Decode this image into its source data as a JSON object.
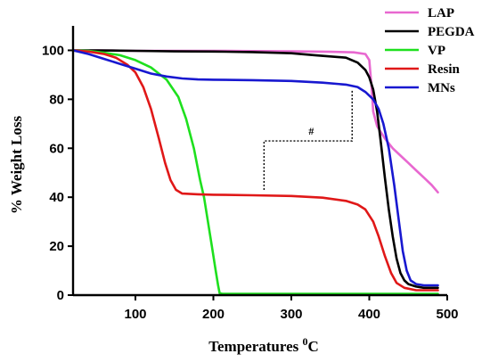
{
  "chart_data": {
    "type": "line",
    "title": "",
    "xlabel": "Temperatures ",
    "xlabel_sup": "0",
    "xlabel_unit": "C",
    "ylabel": "% Weight Loss",
    "xlim": [
      20,
      500
    ],
    "ylim": [
      0,
      110
    ],
    "xticks": [
      100,
      200,
      300,
      400,
      500
    ],
    "yticks": [
      0,
      20,
      40,
      60,
      80,
      100
    ],
    "grid": false,
    "legend_position": "top-right",
    "annotation": {
      "text": "#",
      "between": [
        "Resin",
        "MNs"
      ],
      "x_range": [
        265,
        378
      ]
    },
    "series": [
      {
        "name": "LAP",
        "color": "#e868d0",
        "points": [
          [
            20,
            100
          ],
          [
            50,
            100
          ],
          [
            100,
            99.8
          ],
          [
            150,
            99.8
          ],
          [
            200,
            99.8
          ],
          [
            250,
            99.7
          ],
          [
            300,
            99.6
          ],
          [
            350,
            99.4
          ],
          [
            380,
            99.2
          ],
          [
            395,
            98.5
          ],
          [
            400,
            96
          ],
          [
            403,
            85
          ],
          [
            405,
            75
          ],
          [
            410,
            69
          ],
          [
            420,
            64
          ],
          [
            430,
            60
          ],
          [
            440,
            57
          ],
          [
            450,
            54
          ],
          [
            460,
            51
          ],
          [
            470,
            48
          ],
          [
            480,
            45
          ],
          [
            488,
            42
          ]
        ]
      },
      {
        "name": "PEGDA",
        "color": "#000000",
        "points": [
          [
            20,
            100
          ],
          [
            50,
            100
          ],
          [
            100,
            99.8
          ],
          [
            150,
            99.6
          ],
          [
            200,
            99.5
          ],
          [
            250,
            99.3
          ],
          [
            300,
            98.8
          ],
          [
            330,
            98
          ],
          [
            350,
            97.5
          ],
          [
            370,
            97
          ],
          [
            385,
            95
          ],
          [
            395,
            92
          ],
          [
            400,
            89
          ],
          [
            405,
            84
          ],
          [
            410,
            75
          ],
          [
            415,
            62
          ],
          [
            420,
            48
          ],
          [
            425,
            35
          ],
          [
            430,
            24
          ],
          [
            435,
            15
          ],
          [
            440,
            9
          ],
          [
            445,
            6
          ],
          [
            450,
            4.5
          ],
          [
            460,
            3.5
          ],
          [
            470,
            3
          ],
          [
            480,
            3
          ],
          [
            488,
            3
          ]
        ]
      },
      {
        "name": "VP",
        "color": "#1ee01e",
        "points": [
          [
            20,
            100
          ],
          [
            40,
            99.8
          ],
          [
            60,
            99
          ],
          [
            80,
            98
          ],
          [
            100,
            96
          ],
          [
            120,
            93
          ],
          [
            140,
            88
          ],
          [
            155,
            81
          ],
          [
            165,
            72
          ],
          [
            175,
            60
          ],
          [
            183,
            47
          ],
          [
            188,
            40
          ],
          [
            193,
            30
          ],
          [
            198,
            20
          ],
          [
            203,
            10
          ],
          [
            206,
            4
          ],
          [
            208,
            0.8
          ],
          [
            212,
            0.5
          ],
          [
            250,
            0.5
          ],
          [
            300,
            0.5
          ],
          [
            350,
            0.5
          ],
          [
            400,
            0.5
          ],
          [
            450,
            0.5
          ],
          [
            488,
            0.5
          ]
        ]
      },
      {
        "name": "Resin",
        "color": "#e01818",
        "points": [
          [
            20,
            100
          ],
          [
            40,
            99.5
          ],
          [
            60,
            98.5
          ],
          [
            75,
            97
          ],
          [
            90,
            94
          ],
          [
            100,
            91
          ],
          [
            110,
            85
          ],
          [
            120,
            76
          ],
          [
            130,
            64
          ],
          [
            138,
            54
          ],
          [
            145,
            47
          ],
          [
            152,
            43
          ],
          [
            160,
            41.5
          ],
          [
            180,
            41.2
          ],
          [
            200,
            41
          ],
          [
            250,
            40.8
          ],
          [
            300,
            40.5
          ],
          [
            340,
            39.8
          ],
          [
            370,
            38.5
          ],
          [
            385,
            37
          ],
          [
            395,
            35
          ],
          [
            405,
            30
          ],
          [
            412,
            24
          ],
          [
            420,
            16
          ],
          [
            428,
            9
          ],
          [
            435,
            5
          ],
          [
            445,
            3
          ],
          [
            460,
            2
          ],
          [
            475,
            2
          ],
          [
            488,
            2
          ]
        ]
      },
      {
        "name": "MNs",
        "color": "#1818d0",
        "points": [
          [
            20,
            100
          ],
          [
            40,
            98.5
          ],
          [
            60,
            96.5
          ],
          [
            80,
            94.5
          ],
          [
            100,
            92.5
          ],
          [
            120,
            90.5
          ],
          [
            140,
            89.3
          ],
          [
            160,
            88.5
          ],
          [
            180,
            88.1
          ],
          [
            200,
            88
          ],
          [
            250,
            87.8
          ],
          [
            300,
            87.5
          ],
          [
            340,
            86.8
          ],
          [
            370,
            86
          ],
          [
            385,
            85
          ],
          [
            395,
            83
          ],
          [
            405,
            80
          ],
          [
            412,
            76
          ],
          [
            418,
            70
          ],
          [
            425,
            60
          ],
          [
            432,
            45
          ],
          [
            438,
            30
          ],
          [
            443,
            18
          ],
          [
            448,
            10
          ],
          [
            453,
            6
          ],
          [
            460,
            4.5
          ],
          [
            470,
            4
          ],
          [
            480,
            4
          ],
          [
            488,
            4
          ]
        ]
      }
    ]
  }
}
